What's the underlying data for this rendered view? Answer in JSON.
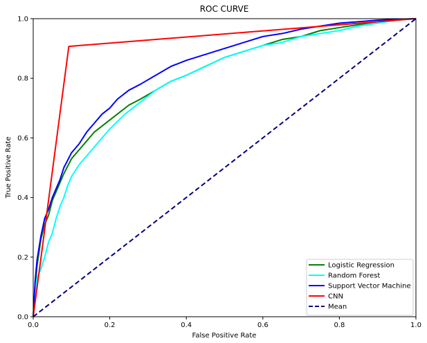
{
  "chart_data": {
    "type": "line",
    "title": "ROC CURVE",
    "xlabel": "False Positive Rate",
    "ylabel": "True Positive Rate",
    "xlim": [
      0.0,
      1.0
    ],
    "ylim": [
      0.0,
      1.0
    ],
    "xticks": [
      "0.0",
      "0.2",
      "0.4",
      "0.6",
      "0.8",
      "1.0"
    ],
    "yticks": [
      "0.0",
      "0.2",
      "0.4",
      "0.6",
      "0.8",
      "1.0"
    ],
    "grid": false,
    "legend_position": "lower right",
    "series": [
      {
        "name": "Logistic Regression",
        "color": "#008000",
        "dash": "solid",
        "x": [
          0.0,
          0.005,
          0.01,
          0.02,
          0.03,
          0.04,
          0.05,
          0.06,
          0.07,
          0.08,
          0.1,
          0.12,
          0.14,
          0.16,
          0.18,
          0.2,
          0.22,
          0.25,
          0.28,
          0.32,
          0.36,
          0.4,
          0.45,
          0.5,
          0.55,
          0.6,
          0.65,
          0.7,
          0.75,
          0.8,
          0.85,
          0.9,
          0.95,
          1.0
        ],
        "y": [
          0.0,
          0.1,
          0.17,
          0.26,
          0.31,
          0.34,
          0.39,
          0.42,
          0.45,
          0.48,
          0.53,
          0.56,
          0.59,
          0.62,
          0.64,
          0.66,
          0.68,
          0.71,
          0.73,
          0.76,
          0.79,
          0.81,
          0.84,
          0.87,
          0.89,
          0.91,
          0.93,
          0.94,
          0.96,
          0.97,
          0.98,
          0.99,
          0.995,
          1.0
        ]
      },
      {
        "name": "Random Forest",
        "color": "#00ffff",
        "dash": "solid",
        "x": [
          0.0,
          0.005,
          0.01,
          0.02,
          0.03,
          0.04,
          0.05,
          0.06,
          0.07,
          0.08,
          0.09,
          0.1,
          0.12,
          0.14,
          0.16,
          0.18,
          0.2,
          0.24,
          0.28,
          0.32,
          0.36,
          0.4,
          0.45,
          0.5,
          0.55,
          0.6,
          0.65,
          0.7,
          0.75,
          0.8,
          0.85,
          0.9,
          0.95,
          1.0
        ],
        "y": [
          0.0,
          0.08,
          0.13,
          0.16,
          0.2,
          0.25,
          0.28,
          0.33,
          0.37,
          0.4,
          0.44,
          0.47,
          0.51,
          0.54,
          0.57,
          0.6,
          0.63,
          0.68,
          0.72,
          0.76,
          0.79,
          0.81,
          0.84,
          0.87,
          0.89,
          0.91,
          0.92,
          0.94,
          0.95,
          0.96,
          0.975,
          0.985,
          0.995,
          1.0
        ]
      },
      {
        "name": "Support Vector Machine",
        "color": "#0000ff",
        "dash": "solid",
        "x": [
          0.0,
          0.005,
          0.01,
          0.02,
          0.03,
          0.04,
          0.05,
          0.06,
          0.07,
          0.08,
          0.1,
          0.12,
          0.14,
          0.16,
          0.18,
          0.2,
          0.22,
          0.25,
          0.28,
          0.32,
          0.36,
          0.4,
          0.45,
          0.5,
          0.55,
          0.6,
          0.65,
          0.7,
          0.75,
          0.8,
          0.85,
          0.9,
          0.95,
          1.0
        ],
        "y": [
          0.0,
          0.12,
          0.19,
          0.27,
          0.33,
          0.36,
          0.4,
          0.43,
          0.46,
          0.5,
          0.55,
          0.58,
          0.62,
          0.65,
          0.68,
          0.7,
          0.73,
          0.76,
          0.78,
          0.81,
          0.84,
          0.86,
          0.88,
          0.9,
          0.92,
          0.94,
          0.95,
          0.965,
          0.975,
          0.985,
          0.99,
          0.995,
          0.998,
          1.0
        ]
      },
      {
        "name": "CNN",
        "color": "#ff0000",
        "dash": "solid",
        "x": [
          0.0,
          0.093,
          1.0
        ],
        "y": [
          0.0,
          0.907,
          1.0
        ]
      },
      {
        "name": "Mean",
        "color": "#000080",
        "dash": "dashed",
        "x": [
          0.0,
          1.0
        ],
        "y": [
          0.0,
          1.0
        ]
      }
    ]
  }
}
